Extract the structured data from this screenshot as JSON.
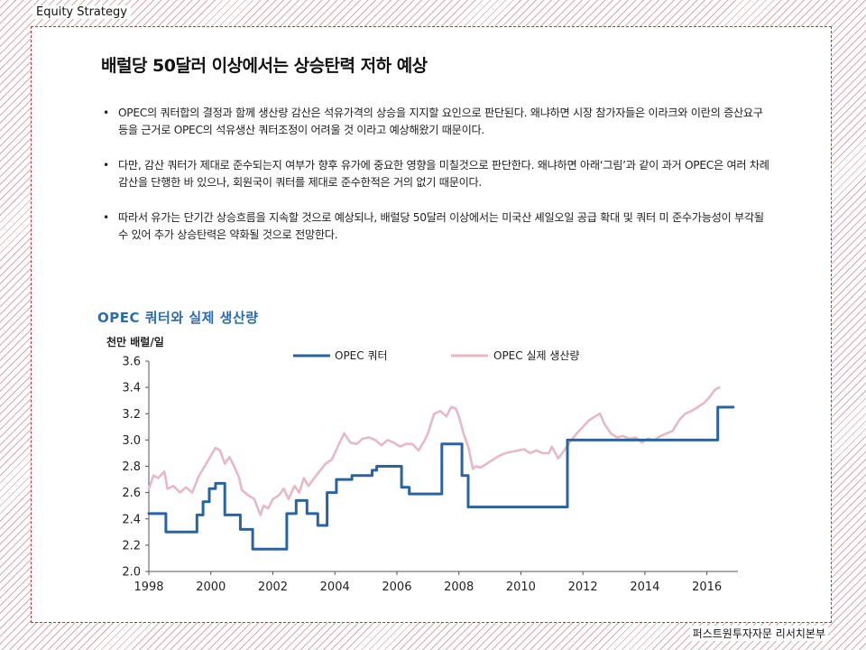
{
  "header": {
    "section": "Equity Strategy"
  },
  "footer": {
    "source": "퍼스트원투자자문 리서치본부"
  },
  "slide": {
    "title": "배럴당 50달러 이상에서는 상승탄력 저하 예상",
    "bullets": [
      "OPEC의 쿼터합의 결정과 함께 생산량 감산은 석유가격의 상승을 지지할 요인으로 판단된다. 왜냐하면 시장 참가자들은 이라크와 이란의 증산요구 등을 근거로 OPEC의 석유생산 쿼터조정이 어려울 것 이라고 예상해왔기 때문이다.",
      "다만, 감산 쿼터가 제대로 준수되는지 여부가 향후 유가에 중요한 영향을 미칠것으로 판단한다. 왜냐하면 아래‘그림’과 같이 과거 OPEC은 여러 차례 감산을 단행한 바 있으나, 회원국이 쿼터를 제대로 준수한적은 거의 없기 때문이다.",
      "따라서 유가는 단기간 상승흐름을 지속할 것으로 예상되나, 배럴당 50달러 이상에서는 미국산 셰일오일 공급 확대 및 쿼터 미 준수가능성이 부각될 수 있어 추가 상승탄력은 약화될 것으로 전망한다."
    ]
  },
  "chart_data": {
    "type": "line",
    "title": "OPEC 쿼터와 실제 생산량",
    "ylabel": "천만 배럴/일",
    "xlabel": "",
    "xlim": [
      1998,
      2017
    ],
    "ylim": [
      2.0,
      3.6
    ],
    "yticks": [
      "3.6",
      "3.4",
      "3.2",
      "3.0",
      "2.8",
      "2.6",
      "2.4",
      "2.2",
      "2.0"
    ],
    "xticks": [
      "1998",
      "2000",
      "2002",
      "2004",
      "2006",
      "2008",
      "2010",
      "2012",
      "2014",
      "2016"
    ],
    "legend_position": "top",
    "grid": false,
    "series": [
      {
        "name": "OPEC 쿼터",
        "color": "#2a63a2",
        "step": true,
        "x": [
          1998.0,
          1998.55,
          1999.2,
          1999.55,
          1999.75,
          1999.95,
          2000.15,
          2000.45,
          2000.65,
          2000.95,
          2001.2,
          2001.35,
          2002.3,
          2002.45,
          2002.75,
          2003.1,
          2003.45,
          2003.75,
          2004.05,
          2004.3,
          2004.55,
          2004.95,
          2005.2,
          2005.35,
          2005.55,
          2006.15,
          2006.4,
          2007.1,
          2007.45,
          2008.1,
          2008.3,
          2011.5,
          2016.35,
          2016.85
        ],
        "values": [
          2.44,
          2.3,
          2.3,
          2.43,
          2.53,
          2.63,
          2.67,
          2.43,
          2.43,
          2.32,
          2.32,
          2.17,
          2.17,
          2.44,
          2.54,
          2.44,
          2.35,
          2.6,
          2.7,
          2.7,
          2.73,
          2.73,
          2.77,
          2.8,
          2.8,
          2.64,
          2.59,
          2.59,
          2.97,
          2.73,
          2.49,
          3.0,
          3.25,
          3.25
        ]
      },
      {
        "name": "OPEC 실제 생산량",
        "color": "#e5b9c5",
        "x": [
          1998.0,
          1998.15,
          1998.3,
          1998.5,
          1998.6,
          1998.8,
          1999.0,
          1999.2,
          1999.4,
          1999.6,
          1999.8,
          2000.0,
          2000.15,
          2000.3,
          2000.45,
          2000.6,
          2000.75,
          2000.9,
          2001.0,
          2001.2,
          2001.4,
          2001.6,
          2001.7,
          2001.85,
          2002.0,
          2002.2,
          2002.35,
          2002.5,
          2002.7,
          2002.85,
          2003.0,
          2003.15,
          2003.3,
          2003.5,
          2003.7,
          2003.9,
          2004.0,
          2004.15,
          2004.3,
          2004.5,
          2004.7,
          2004.9,
          2005.1,
          2005.3,
          2005.5,
          2005.7,
          2005.9,
          2006.1,
          2006.3,
          2006.5,
          2006.7,
          2006.9,
          2007.0,
          2007.2,
          2007.4,
          2007.6,
          2007.75,
          2007.9,
          2008.0,
          2008.15,
          2008.3,
          2008.45,
          2008.55,
          2008.7,
          2008.9,
          2009.1,
          2009.3,
          2009.5,
          2009.7,
          2009.9,
          2010.1,
          2010.3,
          2010.5,
          2010.7,
          2010.9,
          2011.0,
          2011.2,
          2011.4,
          2011.6,
          2011.8,
          2012.0,
          2012.2,
          2012.4,
          2012.55,
          2012.7,
          2012.9,
          2013.1,
          2013.3,
          2013.5,
          2013.7,
          2013.9,
          2014.1,
          2014.3,
          2014.5,
          2014.7,
          2014.9,
          2015.1,
          2015.3,
          2015.5,
          2015.7,
          2015.9,
          2016.1,
          2016.25,
          2016.4
        ],
        "values": [
          2.63,
          2.73,
          2.71,
          2.76,
          2.63,
          2.65,
          2.6,
          2.64,
          2.6,
          2.72,
          2.8,
          2.88,
          2.94,
          2.92,
          2.82,
          2.87,
          2.8,
          2.72,
          2.62,
          2.58,
          2.55,
          2.43,
          2.5,
          2.48,
          2.55,
          2.58,
          2.63,
          2.55,
          2.65,
          2.6,
          2.71,
          2.65,
          2.7,
          2.76,
          2.82,
          2.85,
          2.9,
          2.98,
          3.05,
          2.98,
          2.97,
          3.01,
          3.02,
          3.0,
          2.96,
          3.0,
          2.98,
          2.95,
          2.97,
          2.97,
          2.92,
          3.0,
          3.05,
          3.2,
          3.22,
          3.18,
          3.25,
          3.24,
          3.18,
          3.05,
          2.95,
          2.78,
          2.8,
          2.79,
          2.82,
          2.85,
          2.88,
          2.9,
          2.91,
          2.92,
          2.93,
          2.9,
          2.92,
          2.9,
          2.9,
          2.95,
          2.86,
          2.92,
          2.99,
          3.05,
          3.1,
          3.15,
          3.18,
          3.2,
          3.12,
          3.05,
          3.02,
          3.03,
          3.01,
          3.02,
          2.98,
          3.01,
          3.0,
          3.03,
          3.05,
          3.07,
          3.15,
          3.2,
          3.22,
          3.25,
          3.28,
          3.33,
          3.38,
          3.4
        ]
      }
    ]
  }
}
